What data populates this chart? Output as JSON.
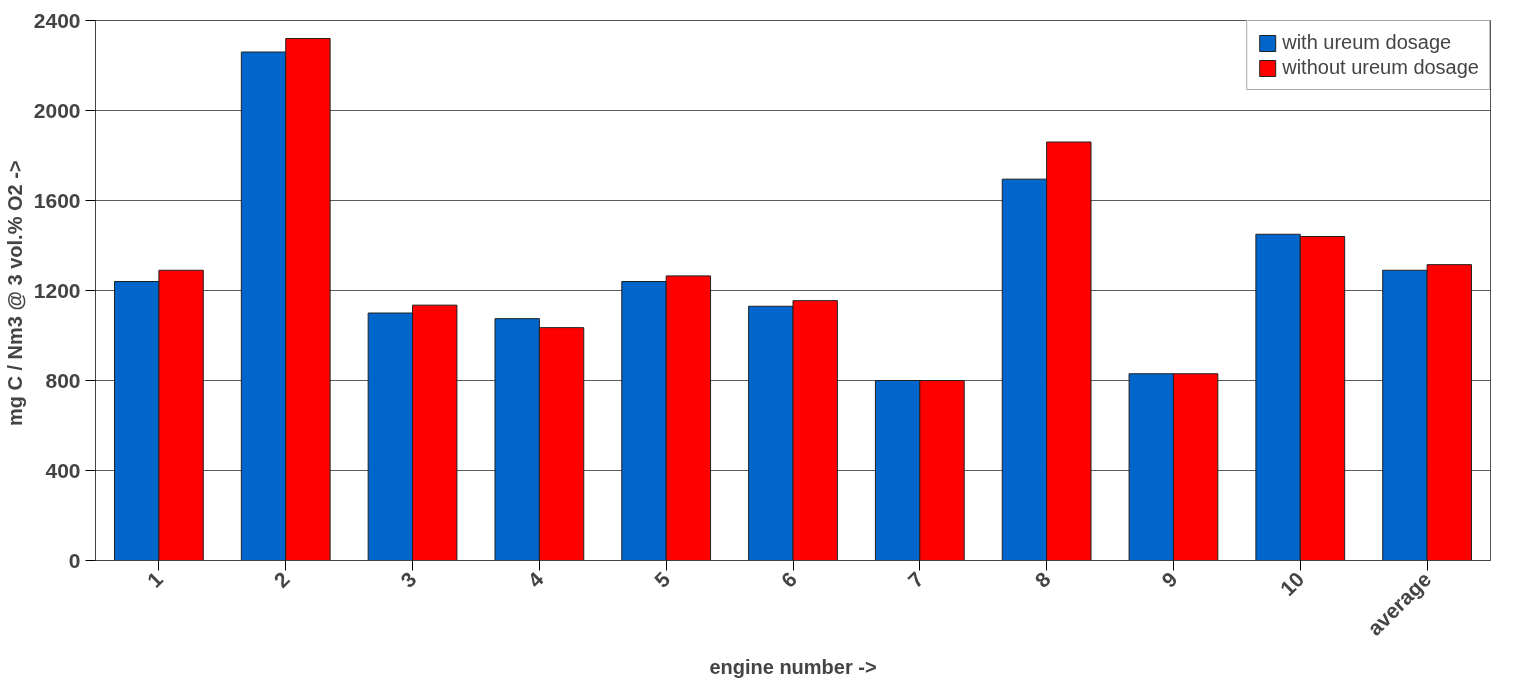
{
  "chart_data": {
    "type": "bar",
    "xlabel": "engine number ->",
    "ylabel": "mg C / Nm3 @ 3 vol.% O2  ->",
    "categories": [
      "1",
      "2",
      "3",
      "4",
      "5",
      "6",
      "7",
      "8",
      "9",
      "10",
      "average"
    ],
    "series": [
      {
        "name": "with ureum dosage",
        "color": "#0066cc",
        "values": [
          1240,
          2260,
          1100,
          1075,
          1240,
          1130,
          800,
          1695,
          830,
          1450,
          1290
        ]
      },
      {
        "name": "without ureum dosage",
        "color": "#ff0000",
        "values": [
          1290,
          2320,
          1135,
          1035,
          1265,
          1155,
          800,
          1860,
          830,
          1440,
          1315
        ]
      }
    ],
    "ylim": [
      0,
      2400
    ],
    "yticks": [
      0,
      400,
      800,
      1200,
      1600,
      2000,
      2400
    ],
    "grid": "y",
    "legend": "top right"
  }
}
